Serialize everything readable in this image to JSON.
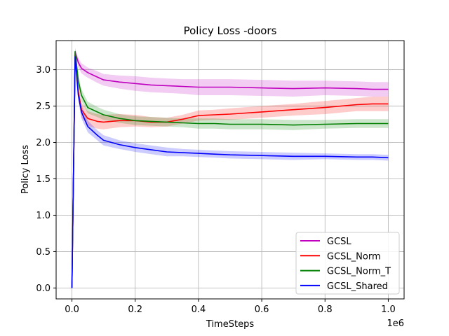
{
  "chart_data": {
    "type": "line",
    "title": "Policy Loss -doors",
    "xlabel": "TimeSteps",
    "ylabel": "Policy Loss",
    "x_multiplier_label": "1e6",
    "xlim": [
      -0.05,
      1.05
    ],
    "ylim": [
      -0.15,
      3.4
    ],
    "xticks": [
      0.0,
      0.2,
      0.4,
      0.6,
      0.8,
      1.0
    ],
    "xtick_labels": [
      "0.0",
      "0.2",
      "0.4",
      "0.6",
      "0.8",
      "1.0"
    ],
    "yticks": [
      0.0,
      0.5,
      1.0,
      1.5,
      2.0,
      2.5,
      3.0
    ],
    "ytick_labels": [
      "0.0",
      "0.5",
      "1.0",
      "1.5",
      "2.0",
      "2.5",
      "3.0"
    ],
    "grid": true,
    "legend_position": "lower-right",
    "series": [
      {
        "name": "GCSL",
        "color": "#bf00bf",
        "x": [
          0.0,
          0.005,
          0.01,
          0.02,
          0.03,
          0.05,
          0.08,
          0.1,
          0.15,
          0.2,
          0.25,
          0.3,
          0.35,
          0.4,
          0.45,
          0.5,
          0.6,
          0.7,
          0.8,
          0.9,
          0.95,
          1.0
        ],
        "y": [
          0.0,
          1.6,
          3.24,
          3.1,
          3.02,
          2.96,
          2.9,
          2.86,
          2.83,
          2.81,
          2.79,
          2.78,
          2.77,
          2.76,
          2.76,
          2.76,
          2.75,
          2.74,
          2.75,
          2.74,
          2.73,
          2.73
        ],
        "band": [
          0.0,
          0.03,
          0.05,
          0.06,
          0.07,
          0.07,
          0.08,
          0.08,
          0.09,
          0.1,
          0.1,
          0.1,
          0.1,
          0.11,
          0.11,
          0.11,
          0.11,
          0.11,
          0.1,
          0.1,
          0.1,
          0.1
        ]
      },
      {
        "name": "GCSL_Norm",
        "color": "#ff0000",
        "x": [
          0.0,
          0.005,
          0.01,
          0.02,
          0.03,
          0.05,
          0.08,
          0.1,
          0.15,
          0.2,
          0.25,
          0.3,
          0.35,
          0.4,
          0.45,
          0.5,
          0.6,
          0.7,
          0.8,
          0.9,
          0.95,
          1.0
        ],
        "y": [
          0.0,
          1.6,
          3.2,
          2.7,
          2.45,
          2.33,
          2.29,
          2.28,
          2.3,
          2.3,
          2.28,
          2.28,
          2.32,
          2.37,
          2.38,
          2.39,
          2.42,
          2.45,
          2.48,
          2.52,
          2.53,
          2.53
        ],
        "band": [
          0.0,
          0.03,
          0.05,
          0.08,
          0.1,
          0.1,
          0.1,
          0.1,
          0.09,
          0.08,
          0.07,
          0.06,
          0.06,
          0.07,
          0.07,
          0.08,
          0.08,
          0.08,
          0.09,
          0.09,
          0.1,
          0.1
        ]
      },
      {
        "name": "GCSL_Norm_T",
        "color": "#008000",
        "x": [
          0.0,
          0.005,
          0.01,
          0.02,
          0.03,
          0.05,
          0.08,
          0.1,
          0.15,
          0.2,
          0.25,
          0.3,
          0.35,
          0.4,
          0.45,
          0.5,
          0.6,
          0.7,
          0.8,
          0.9,
          0.95,
          1.0
        ],
        "y": [
          0.0,
          1.6,
          3.25,
          2.85,
          2.65,
          2.48,
          2.42,
          2.38,
          2.33,
          2.3,
          2.29,
          2.28,
          2.27,
          2.26,
          2.26,
          2.25,
          2.25,
          2.24,
          2.25,
          2.26,
          2.26,
          2.26
        ],
        "band": [
          0.0,
          0.03,
          0.05,
          0.07,
          0.08,
          0.08,
          0.07,
          0.07,
          0.06,
          0.06,
          0.06,
          0.06,
          0.06,
          0.07,
          0.07,
          0.07,
          0.07,
          0.07,
          0.06,
          0.06,
          0.06,
          0.06
        ]
      },
      {
        "name": "GCSL_Shared",
        "color": "#0000ff",
        "x": [
          0.0,
          0.005,
          0.01,
          0.02,
          0.03,
          0.05,
          0.08,
          0.1,
          0.15,
          0.2,
          0.25,
          0.3,
          0.35,
          0.4,
          0.45,
          0.5,
          0.6,
          0.7,
          0.8,
          0.9,
          0.95,
          1.0
        ],
        "y": [
          0.0,
          1.6,
          3.18,
          2.65,
          2.42,
          2.22,
          2.1,
          2.03,
          1.97,
          1.93,
          1.9,
          1.87,
          1.86,
          1.85,
          1.84,
          1.83,
          1.82,
          1.81,
          1.81,
          1.8,
          1.8,
          1.79
        ],
        "band": [
          0.0,
          0.03,
          0.05,
          0.08,
          0.09,
          0.08,
          0.07,
          0.07,
          0.06,
          0.06,
          0.06,
          0.06,
          0.05,
          0.05,
          0.05,
          0.05,
          0.05,
          0.05,
          0.04,
          0.04,
          0.04,
          0.04
        ]
      }
    ]
  }
}
